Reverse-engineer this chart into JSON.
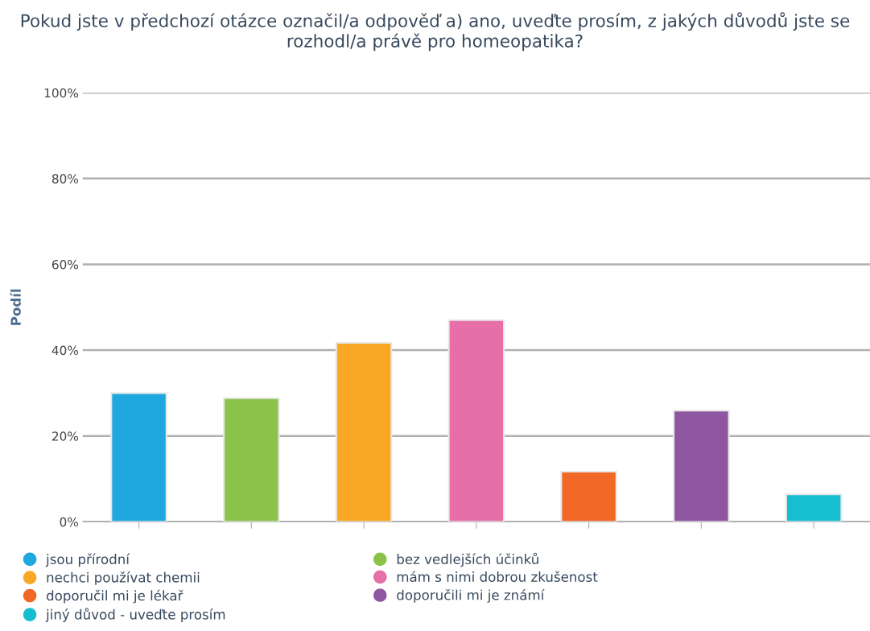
{
  "chart_data": {
    "type": "bar",
    "title": "Pokud jste v předchozí otázce označil/a odpověď a) ano, uveďte prosím, z jakých důvodů jste se rozhodl/a právě pro homeopatika?",
    "ylabel": "Podíl",
    "categories": [
      null,
      null,
      null,
      null,
      null,
      null,
      null
    ],
    "series": [
      {
        "name": "jsou přírodní",
        "color": "#1fa8e0",
        "values": [
          30,
          null,
          null,
          null,
          null,
          null,
          null
        ]
      },
      {
        "name": "bez vedlejších účinků",
        "color": "#8bc34a",
        "values": [
          null,
          28.8,
          null,
          null,
          null,
          null,
          null
        ]
      },
      {
        "name": "nechci používat chemii",
        "color": "#f9a825",
        "values": [
          null,
          null,
          41.7,
          null,
          null,
          null,
          null
        ]
      },
      {
        "name": "mám s nimi dobrou zkušenost",
        "color": "#e66fa8",
        "values": [
          null,
          null,
          null,
          47,
          null,
          null,
          null
        ]
      },
      {
        "name": "doporučil mi je lékař",
        "color": "#f06726",
        "values": [
          null,
          null,
          null,
          null,
          11.7,
          null,
          null
        ]
      },
      {
        "name": "doporučili mi je známí",
        "color": "#8e55a0",
        "values": [
          null,
          null,
          null,
          null,
          null,
          25.9,
          null
        ]
      },
      {
        "name": "jiný důvod - uveďte prosím",
        "color": "#17becf",
        "values": [
          null,
          null,
          null,
          null,
          null,
          null,
          6.4
        ]
      }
    ],
    "ylim": [
      0,
      100
    ],
    "yticks": [
      {
        "value": 0,
        "label": "0%"
      },
      {
        "value": 20,
        "label": "20%"
      },
      {
        "value": 40,
        "label": "40%"
      },
      {
        "value": 60,
        "label": "60%"
      },
      {
        "value": 80,
        "label": "80%"
      },
      {
        "value": 100,
        "label": "100%"
      }
    ],
    "grid": "y",
    "legend": "bottom",
    "marker": "circle"
  }
}
